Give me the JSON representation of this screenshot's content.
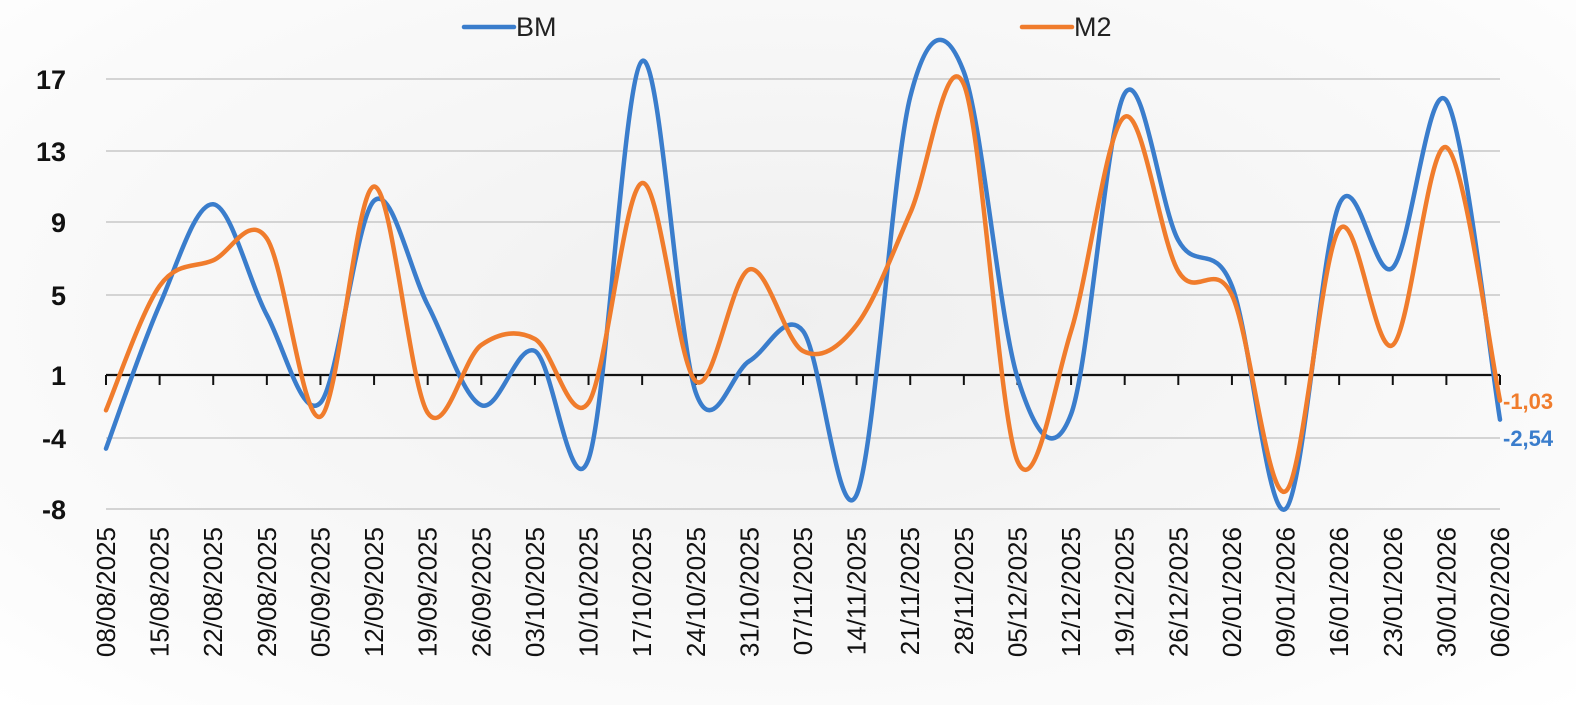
{
  "chart_data": {
    "type": "line",
    "x": [
      "08/08/2025",
      "15/08/2025",
      "22/08/2025",
      "29/08/2025",
      "05/09/2025",
      "12/09/2025",
      "19/09/2025",
      "26/09/2025",
      "03/10/2025",
      "10/10/2025",
      "17/10/2025",
      "24/10/2025",
      "31/10/2025",
      "07/11/2025",
      "14/11/2025",
      "21/11/2025",
      "28/11/2025",
      "05/12/2025",
      "12/12/2025",
      "19/12/2025",
      "26/12/2025",
      "02/01/2026",
      "09/01/2026",
      "16/01/2026",
      "23/01/2026",
      "30/01/2026",
      "06/02/2026"
    ],
    "series": [
      {
        "name": "BM",
        "color": "#3a7dcc",
        "values": [
          -4.6,
          4.5,
          10,
          4,
          -1.2,
          10.2,
          4.5,
          -1.4,
          2.2,
          -5.2,
          18,
          -0.4,
          1.7,
          3.2,
          -7.2,
          16,
          17.4,
          0.8,
          -2.1,
          16.2,
          8,
          5.5,
          -8,
          10,
          6.5,
          15.8,
          -2.54
        ]
      },
      {
        "name": "M2",
        "color": "#f07c2c",
        "values": [
          -1.8,
          5.5,
          6.9,
          8.1,
          -2.3,
          11,
          -2,
          2.5,
          2.8,
          -1.2,
          11.2,
          0.5,
          6.4,
          2.2,
          3.5,
          9.5,
          16.7,
          -5.3,
          3.2,
          14.9,
          6.3,
          5,
          -7,
          8.6,
          2.5,
          13.2,
          -1.03
        ]
      }
    ],
    "yticks": [
      17,
      13,
      9,
      5,
      1,
      -4,
      -8
    ],
    "ylim": [
      -8,
      17
    ],
    "end_labels": [
      "-1,03",
      "-2,54"
    ],
    "legend_position": "top",
    "grid": true,
    "title": "",
    "xlabel": "",
    "ylabel": ""
  }
}
